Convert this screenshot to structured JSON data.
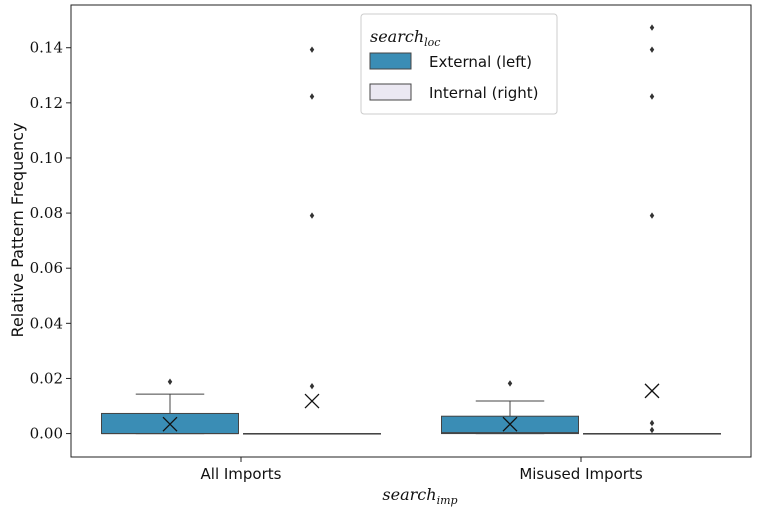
{
  "chart_data": {
    "type": "box",
    "title": "",
    "xlabel_main": "search",
    "xlabel_sub": "imp",
    "ylabel": "Relative Pattern Frequency",
    "ylim": [
      -0.0085,
      0.1555
    ],
    "yticks": [
      0.0,
      0.02,
      0.04,
      0.06,
      0.08,
      0.1,
      0.12,
      0.14
    ],
    "ytick_labels": [
      "0.00",
      "0.02",
      "0.04",
      "0.06",
      "0.08",
      "0.10",
      "0.12",
      "0.14"
    ],
    "categories": [
      "All Imports",
      "Misused Imports"
    ],
    "legend": {
      "title_main": "search",
      "title_sub": "loc",
      "placement": "top-center"
    },
    "series": [
      {
        "name": "External (left)",
        "color": "#3a8db5",
        "boxes": [
          {
            "q1": 0.0,
            "median": 0.0,
            "q3": 0.0073,
            "whisker_low": 0.0,
            "whisker_high": 0.0143,
            "mean": 0.0034,
            "outliers": [
              0.0188
            ]
          },
          {
            "q1": 0.0,
            "median": 0.0003,
            "q3": 0.0063,
            "whisker_low": 0.0,
            "whisker_high": 0.0118,
            "mean": 0.0034,
            "outliers": [
              0.0182
            ]
          }
        ]
      },
      {
        "name": "Internal (right)",
        "color": "#ebe8f2",
        "boxes": [
          {
            "q1": 0.0,
            "median": 0.0,
            "q3": 0.0,
            "whisker_low": 0.0,
            "whisker_high": 0.0,
            "mean": 0.0118,
            "outliers": [
              0.0172,
              0.0791,
              0.1223,
              0.1393
            ]
          },
          {
            "q1": 0.0,
            "median": 0.0,
            "q3": 0.0,
            "whisker_low": 0.0,
            "whisker_high": 0.0,
            "mean": 0.0155,
            "outliers": [
              0.0013,
              0.0038,
              0.0791,
              0.1223,
              0.1393,
              0.1473
            ]
          }
        ]
      }
    ]
  }
}
